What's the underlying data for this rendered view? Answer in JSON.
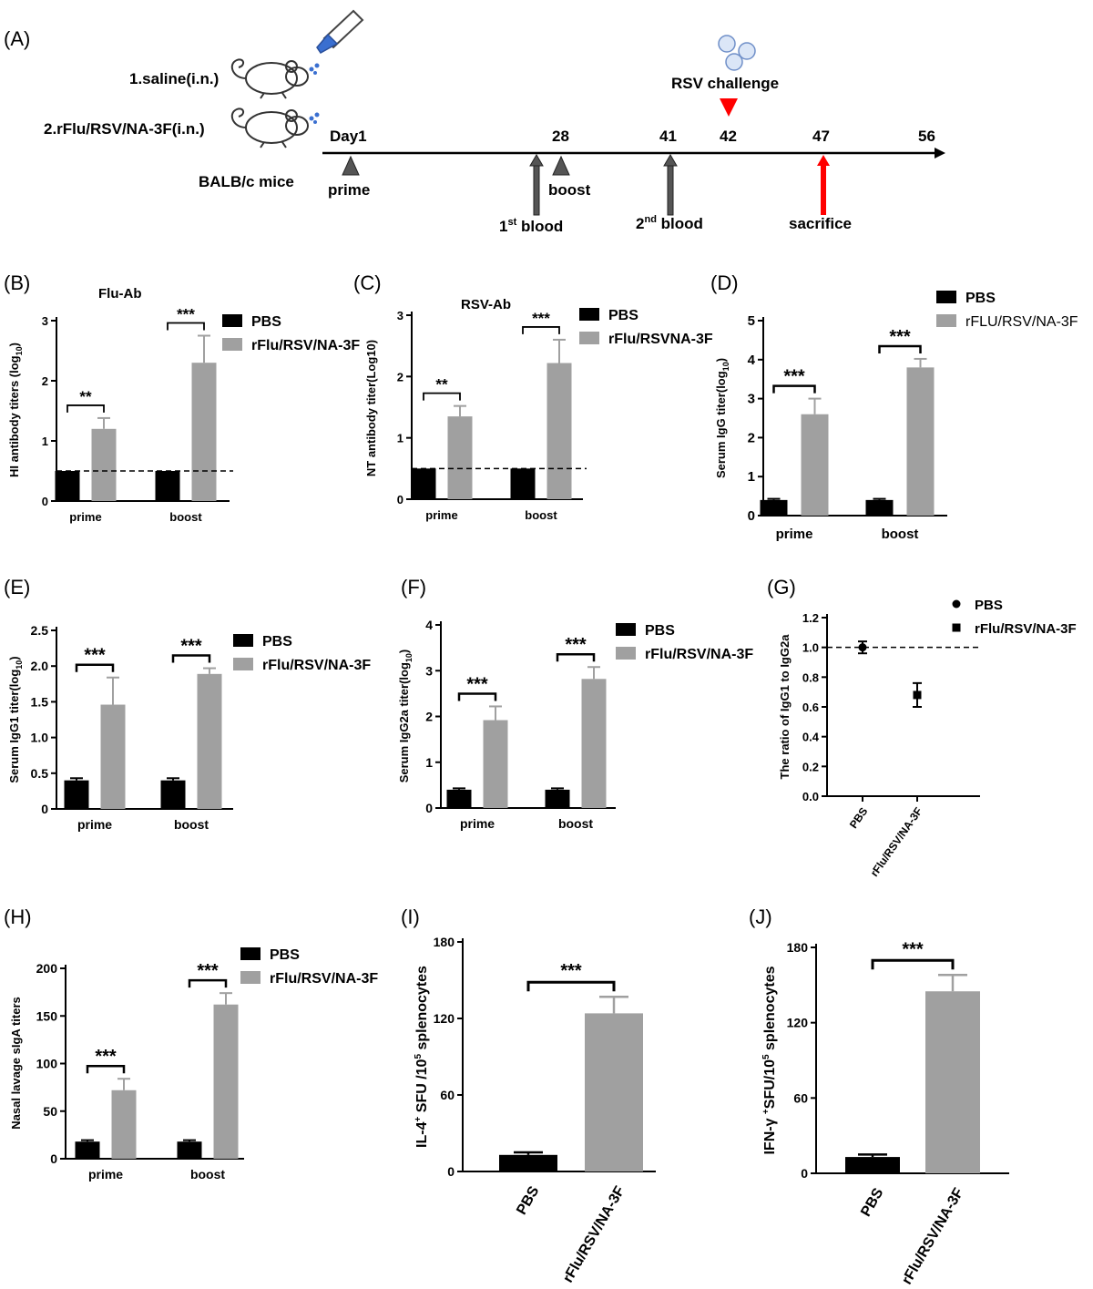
{
  "timeline": {
    "panel_label": "(A)",
    "groups": [
      "1.saline(i.n.)",
      "2.rFlu/RSV/NA-3F(i.n.)"
    ],
    "mice_label": "BALB/c mice",
    "challenge_label": "RSV challenge",
    "days": [
      {
        "day": 1,
        "label": "Day1"
      },
      {
        "day": 28,
        "label": "28"
      },
      {
        "day": 41,
        "label": "41"
      },
      {
        "day": 42,
        "label": "42"
      },
      {
        "day": 47,
        "label": "47"
      },
      {
        "day": 56,
        "label": "56"
      }
    ],
    "events": {
      "prime": "prime",
      "boost": "boost",
      "blood1_prefix": "1",
      "blood1_sup": "st",
      "blood1_suffix": " blood",
      "blood2_prefix": "2",
      "blood2_sup": "nd",
      "blood2_suffix": " blood",
      "sacrifice": "sacrifice"
    },
    "colors": {
      "challenge": "#ff0000",
      "blood": "#555555",
      "triangle": "#555555"
    }
  },
  "chart_data": [
    {
      "id": "B",
      "panel_label": "(B)",
      "type": "bar",
      "title": "Flu-Ab",
      "ylabel": "HI antibody titers (log",
      "ylabel_sub": "10",
      "ylabel_end": ")",
      "categories": [
        "prime",
        "boost"
      ],
      "series": [
        {
          "name": "PBS",
          "color": "#000000",
          "values": [
            0.5,
            0.5
          ],
          "errors": [
            0,
            0
          ]
        },
        {
          "name": "rFlu/RSV/NA-3F",
          "color": "#a0a0a0",
          "values": [
            1.2,
            2.3
          ],
          "errors": [
            0.18,
            0.45
          ]
        }
      ],
      "ylim": [
        0,
        3
      ],
      "yticks": [
        "0",
        "1",
        "2",
        "3"
      ],
      "ytick_values": [
        0,
        1,
        2,
        3
      ],
      "threshold": 0.5,
      "significance": [
        "**",
        "***"
      ]
    },
    {
      "id": "C",
      "panel_label": "(C)",
      "type": "bar",
      "title": "RSV-Ab",
      "ylabel": "NT antibody titer(Log10)",
      "ylabel_sub": "",
      "ylabel_end": "",
      "categories": [
        "prime",
        "boost"
      ],
      "series": [
        {
          "name": "PBS",
          "color": "#000000",
          "values": [
            0.5,
            0.5
          ],
          "errors": [
            0,
            0
          ]
        },
        {
          "name": "rFlu/RSVNA-3F",
          "color": "#a0a0a0",
          "values": [
            1.35,
            2.22
          ],
          "errors": [
            0.17,
            0.38
          ]
        }
      ],
      "ylim": [
        0,
        3
      ],
      "yticks": [
        "0",
        "1",
        "2",
        "3"
      ],
      "ytick_values": [
        0,
        1,
        2,
        3
      ],
      "threshold": 0.5,
      "significance": [
        "**",
        "***"
      ]
    },
    {
      "id": "D",
      "panel_label": "(D)",
      "type": "bar",
      "title": "",
      "ylabel": "Serum IgG titer(log",
      "ylabel_sub": "10",
      "ylabel_end": ")",
      "categories": [
        "prime",
        "boost"
      ],
      "series": [
        {
          "name": "PBS",
          "color": "#000000",
          "values": [
            0.4,
            0.4
          ],
          "errors": [
            0.03,
            0.03
          ]
        },
        {
          "name": "rFLU/RSV/NA-3F",
          "color": "#a0a0a0",
          "values": [
            2.6,
            3.8
          ],
          "errors": [
            0.4,
            0.22
          ]
        }
      ],
      "ylim": [
        0,
        5
      ],
      "yticks": [
        "0",
        "1",
        "2",
        "3",
        "4",
        "5"
      ],
      "ytick_values": [
        0,
        1,
        2,
        3,
        4,
        5
      ],
      "significance": [
        "***",
        "***"
      ]
    },
    {
      "id": "E",
      "panel_label": "(E)",
      "type": "bar",
      "title": "",
      "ylabel": "Serum IgG1 titer(log",
      "ylabel_sub": "10",
      "ylabel_end": ")",
      "categories": [
        "prime",
        "boost"
      ],
      "series": [
        {
          "name": "PBS",
          "color": "#000000",
          "values": [
            0.4,
            0.4
          ],
          "errors": [
            0.03,
            0.03
          ]
        },
        {
          "name": "rFlu/RSV/NA-3F",
          "color": "#a0a0a0",
          "values": [
            1.46,
            1.89
          ],
          "errors": [
            0.38,
            0.08
          ]
        }
      ],
      "ylim": [
        0,
        2.5
      ],
      "yticks": [
        "0",
        "0.5",
        "1.0",
        "1.5",
        "2.0",
        "2.5"
      ],
      "ytick_values": [
        0,
        0.5,
        1,
        1.5,
        2,
        2.5
      ],
      "significance": [
        "***",
        "***"
      ]
    },
    {
      "id": "F",
      "panel_label": "(F)",
      "type": "bar",
      "title": "",
      "ylabel": "Serum IgG2a titer(log",
      "ylabel_sub": "10",
      "ylabel_end": ")",
      "categories": [
        "prime",
        "boost"
      ],
      "series": [
        {
          "name": "PBS",
          "color": "#000000",
          "values": [
            0.4,
            0.4
          ],
          "errors": [
            0.03,
            0.03
          ]
        },
        {
          "name": "rFlu/RSV/NA-3F",
          "color": "#a0a0a0",
          "values": [
            1.92,
            2.82
          ],
          "errors": [
            0.3,
            0.26
          ]
        }
      ],
      "ylim": [
        0,
        4
      ],
      "yticks": [
        "0",
        "1",
        "2",
        "3",
        "4"
      ],
      "ytick_values": [
        0,
        1,
        2,
        3,
        4
      ],
      "significance": [
        "***",
        "***"
      ]
    },
    {
      "id": "G",
      "panel_label": "(G)",
      "type": "scatter",
      "title": "",
      "ylabel": "The ratio of IgG1 to IgG2a",
      "ylabel_sub": "",
      "ylabel_end": "",
      "categories": [
        "PBS",
        "rFlu/RSV/NA-3F"
      ],
      "series": [
        {
          "name": "PBS",
          "marker": "circle",
          "values": [
            1.0
          ],
          "errors": [
            0.04
          ]
        },
        {
          "name": "rFlu/RSV/NA-3F",
          "marker": "square",
          "values": [
            0.68
          ],
          "errors": [
            0.08
          ]
        }
      ],
      "ylim": [
        0,
        1.2
      ],
      "yticks": [
        "0.0",
        "0.2",
        "0.4",
        "0.6",
        "0.8",
        "1.0",
        "1.2"
      ],
      "ytick_values": [
        0,
        0.2,
        0.4,
        0.6,
        0.8,
        1.0,
        1.2
      ],
      "threshold": 1.0
    },
    {
      "id": "H",
      "panel_label": "(H)",
      "type": "bar",
      "title": "",
      "ylabel": "Nasal lavage sIgA titers",
      "ylabel_sub": "",
      "ylabel_end": "",
      "categories": [
        "prime",
        "boost"
      ],
      "series": [
        {
          "name": "PBS",
          "color": "#000000",
          "values": [
            18,
            18
          ],
          "errors": [
            1.5,
            1.5
          ]
        },
        {
          "name": "rFlu/RSV/NA-3F",
          "color": "#a0a0a0",
          "values": [
            72,
            162
          ],
          "errors": [
            12,
            12
          ]
        }
      ],
      "ylim": [
        0,
        200
      ],
      "yticks": [
        "0",
        "50",
        "100",
        "150",
        "200"
      ],
      "ytick_values": [
        0,
        50,
        100,
        150,
        200
      ],
      "significance": [
        "***",
        "***"
      ]
    },
    {
      "id": "I",
      "panel_label": "(I)",
      "type": "bar",
      "title": "",
      "ylabel": "IL-4",
      "ylabel_sup": "+",
      "ylabel_mid": " SFU /10",
      "ylabel_sup2": "5",
      "ylabel_end": " splenocytes",
      "categories": [
        "PBS",
        "rFlu/RSV/NA-3F"
      ],
      "series": [
        {
          "name": "",
          "color": "#a0a0a0",
          "values": [
            13,
            124
          ],
          "errors": [
            2,
            13
          ],
          "colors": [
            "#000000",
            "#a0a0a0"
          ]
        }
      ],
      "ylim": [
        0,
        180
      ],
      "yticks": [
        "0",
        "60",
        "120",
        "180"
      ],
      "ytick_values": [
        0,
        60,
        120,
        180
      ],
      "significance": [
        "***"
      ]
    },
    {
      "id": "J",
      "panel_label": "(J)",
      "type": "bar",
      "title": "",
      "ylabel": "IFN-γ ",
      "ylabel_sup": "+",
      "ylabel_mid": "SFU/10",
      "ylabel_sup2": "5",
      "ylabel_end": " splenocytes",
      "categories": [
        "PBS",
        "rFlu/RSV/NA-3F"
      ],
      "series": [
        {
          "name": "",
          "color": "#a0a0a0",
          "values": [
            13,
            145
          ],
          "errors": [
            2,
            13
          ],
          "colors": [
            "#000000",
            "#a0a0a0"
          ]
        }
      ],
      "ylim": [
        0,
        180
      ],
      "yticks": [
        "0",
        "60",
        "120",
        "180"
      ],
      "ytick_values": [
        0,
        60,
        120,
        180
      ],
      "significance": [
        "***"
      ]
    }
  ]
}
